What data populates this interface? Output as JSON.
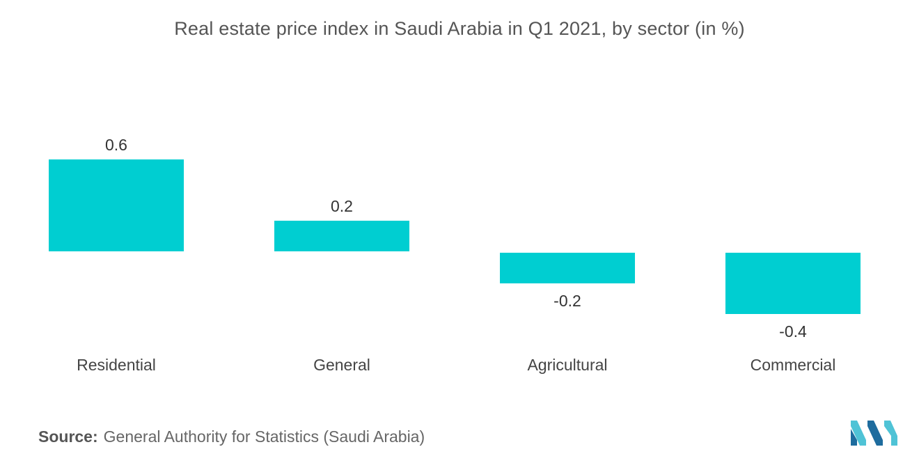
{
  "chart_data": {
    "type": "bar",
    "title": "Real estate price index in Saudi Arabia in Q1 2021, by sector (in %)",
    "categories": [
      "Residential",
      "General",
      "Agricultural",
      "Commercial"
    ],
    "values": [
      0.6,
      0.2,
      -0.2,
      -0.4
    ],
    "value_labels": [
      "0.6",
      "0.2",
      "-0.2",
      "-0.4"
    ],
    "xlabel": "",
    "ylabel": "",
    "ylim": [
      -0.4,
      0.6
    ],
    "grid": false,
    "legend": "none",
    "bar_color": "#00CED1"
  },
  "source": {
    "label": "Source:",
    "text": "General Authority for Statistics (Saudi Arabia)"
  },
  "logo": {
    "icon": "mordor-intelligence-logo-icon",
    "colors": [
      "#4FC3D6",
      "#1E6C9E"
    ]
  }
}
